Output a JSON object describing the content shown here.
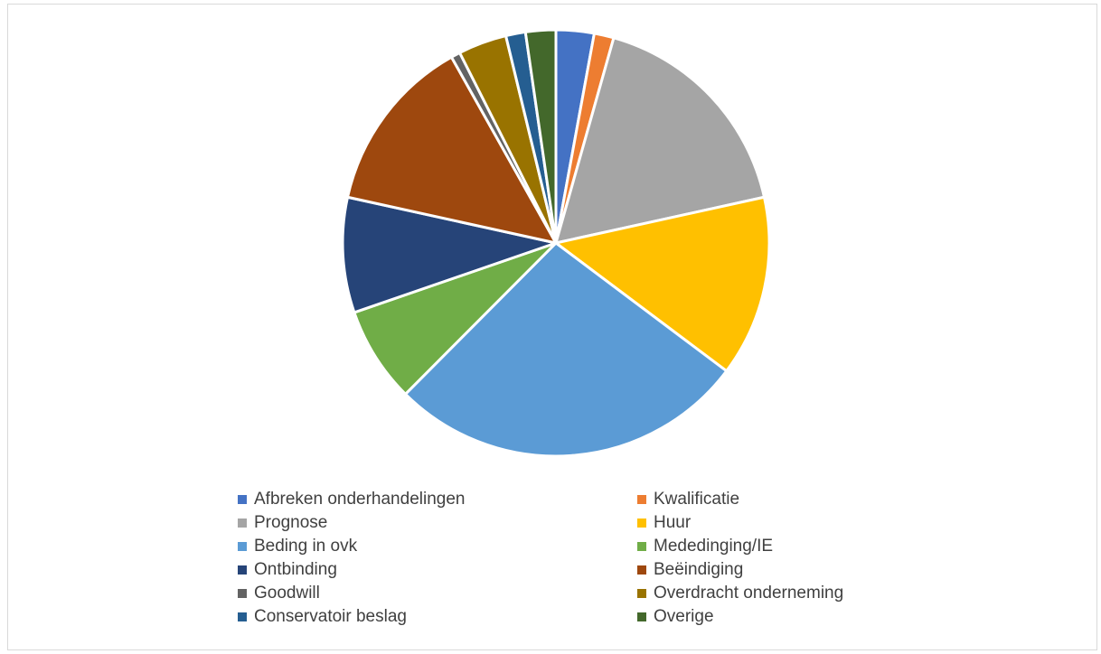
{
  "chart_data": {
    "type": "pie",
    "title": "",
    "start_angle_deg": 0,
    "direction": "clockwise",
    "legend_position": "bottom",
    "series": [
      {
        "values": [
          2.9,
          1.5,
          17.3,
          13.8,
          27.4,
          7.3,
          8.8,
          13.5,
          0.7,
          3.7,
          1.5,
          2.3
        ]
      }
    ],
    "categories": [
      "Afbreken onderhandelingen",
      "Kwalificatie",
      "Prognose",
      "Huur",
      "Beding in ovk",
      "Mededinging/IE",
      "Ontbinding",
      "Beëindiging",
      "Goodwill",
      "Overdracht onderneming",
      "Conservatoir beslag",
      "Overige"
    ],
    "colors": [
      "#4472C4",
      "#ED7D31",
      "#A5A5A5",
      "#FFC000",
      "#5B9BD5",
      "#70AD47",
      "#264478",
      "#9E480E",
      "#636363",
      "#997300",
      "#255E91",
      "#43682B"
    ]
  }
}
